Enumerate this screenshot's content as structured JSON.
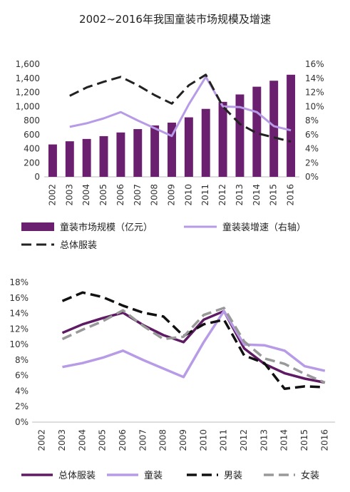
{
  "title": "2002~2016年我国童装市场规模及增速",
  "chart_data": [
    {
      "type": "bar+line",
      "categories": [
        "2002",
        "2003",
        "2004",
        "2005",
        "2006",
        "2007",
        "2008",
        "2009",
        "2010",
        "2011",
        "2012",
        "2013",
        "2014",
        "2015",
        "2016"
      ],
      "left_axis": {
        "ticks": [
          "0",
          "200",
          "400",
          "600",
          "800",
          "1,000",
          "1,200",
          "1,400",
          "1,600"
        ],
        "ylim": [
          0,
          1600
        ]
      },
      "right_axis": {
        "ticks": [
          "0%",
          "2%",
          "4%",
          "6%",
          "8%",
          "10%",
          "12%",
          "14%",
          "16%"
        ],
        "ylim": [
          0,
          16
        ]
      },
      "series": [
        {
          "name": "童装市场规模（亿元）",
          "type": "bar",
          "axis": "left",
          "color": "#6b1f6f",
          "values": [
            460,
            505,
            538,
            578,
            630,
            678,
            730,
            770,
            845,
            965,
            1065,
            1170,
            1280,
            1365,
            1450
          ]
        },
        {
          "name": "童装装增速（右轴）",
          "type": "line",
          "axis": "right",
          "color": "#b79be6",
          "values": [
            null,
            7.1,
            7.6,
            8.3,
            9.2,
            8.0,
            6.9,
            5.8,
            10.3,
            14.2,
            10.0,
            9.9,
            9.2,
            7.2,
            6.6
          ]
        },
        {
          "name": "总体服装",
          "type": "line",
          "axis": "right",
          "color": "#222222",
          "dash": "long",
          "values": [
            null,
            11.5,
            12.7,
            13.5,
            14.2,
            13.0,
            11.6,
            10.4,
            13.0,
            14.5,
            10.0,
            7.5,
            6.2,
            5.6,
            5.0
          ]
        }
      ]
    },
    {
      "type": "line",
      "categories": [
        "2002",
        "2003",
        "2004",
        "2005",
        "2006",
        "2007",
        "2008",
        "2009",
        "2010",
        "2011",
        "2012",
        "2013",
        "2014",
        "2015",
        "2016"
      ],
      "y_axis": {
        "ticks": [
          "0%",
          "2%",
          "4%",
          "6%",
          "8%",
          "10%",
          "12%",
          "14%",
          "16%",
          "18%"
        ],
        "ylim": [
          0,
          18
        ]
      },
      "series": [
        {
          "name": "总体服装",
          "color": "#5e1a63",
          "dash": "solid",
          "values": [
            null,
            11.5,
            12.6,
            13.4,
            14.1,
            12.5,
            11.2,
            10.3,
            13.2,
            14.3,
            9.5,
            7.5,
            6.3,
            5.6,
            5.1
          ]
        },
        {
          "name": "童装",
          "color": "#b79be6",
          "dash": "solid",
          "values": [
            null,
            7.1,
            7.6,
            8.3,
            9.2,
            8.0,
            6.9,
            5.8,
            10.3,
            14.3,
            10.0,
            9.9,
            9.2,
            7.2,
            6.6
          ]
        },
        {
          "name": "男装",
          "color": "#111111",
          "dash": "long",
          "values": [
            null,
            15.6,
            16.7,
            16.1,
            15.0,
            14.1,
            13.6,
            11.1,
            12.6,
            13.2,
            8.6,
            7.6,
            4.3,
            4.6,
            4.5
          ]
        },
        {
          "name": "女装",
          "color": "#999999",
          "dash": "long",
          "values": [
            null,
            10.7,
            11.9,
            13.0,
            14.4,
            12.4,
            10.7,
            11.0,
            13.8,
            14.7,
            10.4,
            8.2,
            7.5,
            6.2,
            5.1
          ]
        }
      ]
    }
  ]
}
